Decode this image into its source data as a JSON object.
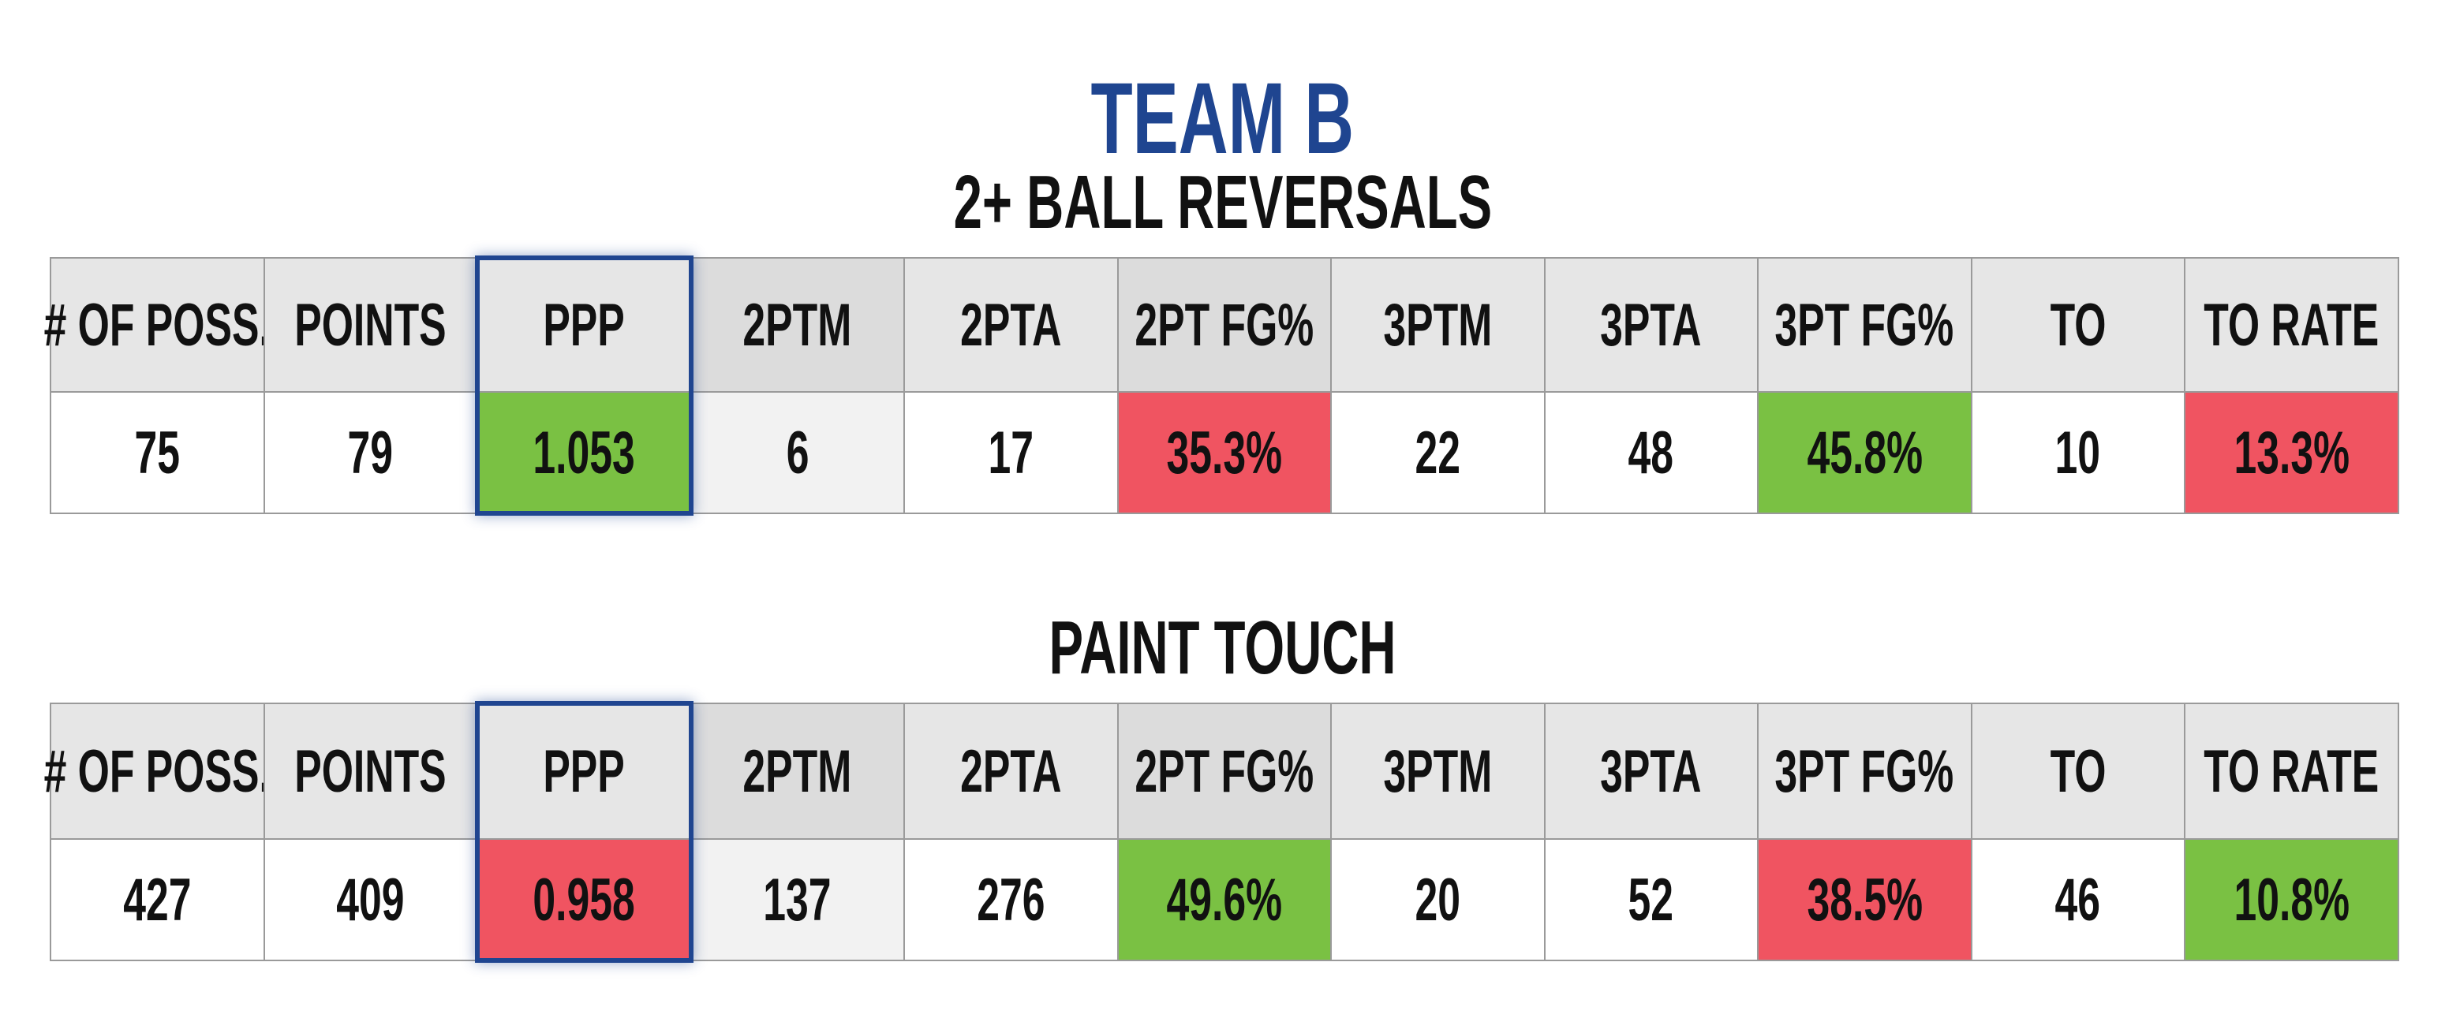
{
  "header": {
    "title": "TEAM B"
  },
  "sections": [
    {
      "title": "2+ BALL REVERSALS",
      "columns": [
        "# OF POSS.",
        "POINTS",
        "PPP",
        "2PTM",
        "2PTA",
        "2PT FG%",
        "3PTM",
        "3PTA",
        "3PT FG%",
        "TO",
        "TO RATE"
      ],
      "cells": [
        {
          "text": "75"
        },
        {
          "text": "79"
        },
        {
          "text": "1.053",
          "color": "#7ac143"
        },
        {
          "text": "6"
        },
        {
          "text": "17"
        },
        {
          "text": "35.3%",
          "color": "#f05461"
        },
        {
          "text": "22"
        },
        {
          "text": "48"
        },
        {
          "text": "45.8%",
          "color": "#7ac143"
        },
        {
          "text": "10"
        },
        {
          "text": "13.3%",
          "color": "#f05461"
        }
      ]
    },
    {
      "title": "PAINT TOUCH",
      "columns": [
        "# OF POSS.",
        "POINTS",
        "PPP",
        "2PTM",
        "2PTA",
        "2PT FG%",
        "3PTM",
        "3PTA",
        "3PT FG%",
        "TO",
        "TO RATE"
      ],
      "cells": [
        {
          "text": "427"
        },
        {
          "text": "409"
        },
        {
          "text": "0.958",
          "color": "#f05461"
        },
        {
          "text": "137"
        },
        {
          "text": "276"
        },
        {
          "text": "49.6%",
          "color": "#7ac143"
        },
        {
          "text": "20"
        },
        {
          "text": "52"
        },
        {
          "text": "38.5%",
          "color": "#f05461"
        },
        {
          "text": "46"
        },
        {
          "text": "10.8%",
          "color": "#7ac143"
        }
      ]
    }
  ]
}
